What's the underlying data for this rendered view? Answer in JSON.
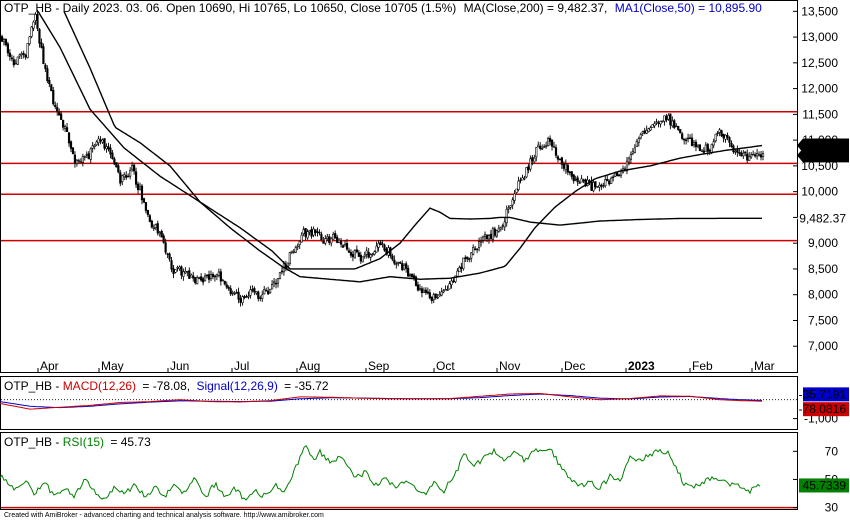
{
  "header": {
    "ticker": "OTP_HB",
    "price_line": "OTP_HB - Daily 2023. 03. 06. Open 10690, Hi 10765, Lo 10650, Close 10705 (1.5%)",
    "ma200_label": "MA(Close,200) = 9,482.37,",
    "ma50_label": "MA1(Close,50) = 10,895.90"
  },
  "macd_header": {
    "prefix": "OTP_HB - ",
    "macd_label": "MACD(12,26)",
    "macd_value": "= -78.08,",
    "signal_label": "Signal(12,26,9)",
    "signal_value": "= -35.72"
  },
  "rsi_header": {
    "prefix": "OTP_HB - ",
    "rsi_label": "RSI(15)",
    "rsi_value": "= 45.73"
  },
  "footer": "Created with AmiBroker - advanced charting and technical analysis software. http://www.amibroker.com",
  "colors": {
    "candles": "#000000",
    "ma": "#000000",
    "support_lines": "#cc0000",
    "macd": "#cc0000",
    "signal": "#0000cc",
    "rsi": "#008000"
  },
  "chart_data": [
    {
      "type": "candlestick",
      "xlabel": "",
      "ylabel": "",
      "ylim": [
        6500,
        13700
      ],
      "yticks": [
        "13,500",
        "13,000",
        "12,500",
        "12,000",
        "11,500",
        "11,000",
        "10,500",
        "10,000",
        "9,500",
        "9,000",
        "8,500",
        "8,000",
        "7,500",
        "7,000"
      ],
      "ytick_values": [
        13500,
        13000,
        12500,
        12000,
        11500,
        11000,
        10500,
        10000,
        9500,
        9000,
        8500,
        8000,
        7500,
        7000
      ],
      "xticks": [
        "Apr",
        "May",
        "Jun",
        "Jul",
        "Aug",
        "Sep",
        "Oct",
        "Nov",
        "Dec",
        "2023",
        "Feb",
        "Mar"
      ],
      "horizontal_lines": [
        11550,
        10550,
        9950,
        9050
      ],
      "last_close_label": "10,705",
      "ma50_label": "10,895.9",
      "ma200_label": "9,482.37",
      "close_anchors": [
        [
          0,
          13000
        ],
        [
          6,
          12500
        ],
        [
          12,
          12700
        ],
        [
          17,
          13400
        ],
        [
          21,
          12500
        ],
        [
          27,
          11600
        ],
        [
          32,
          11200
        ],
        [
          37,
          10600
        ],
        [
          44,
          10700
        ],
        [
          50,
          11000
        ],
        [
          55,
          10750
        ],
        [
          60,
          10200
        ],
        [
          66,
          10450
        ],
        [
          71,
          9900
        ],
        [
          76,
          9400
        ],
        [
          80,
          9200
        ],
        [
          86,
          8500
        ],
        [
          92,
          8450
        ],
        [
          98,
          8250
        ],
        [
          104,
          8300
        ],
        [
          110,
          8400
        ],
        [
          115,
          8100
        ],
        [
          121,
          7900
        ],
        [
          126,
          8050
        ],
        [
          130,
          7950
        ],
        [
          136,
          8100
        ],
        [
          141,
          8400
        ],
        [
          147,
          8800
        ],
        [
          153,
          9200
        ],
        [
          158,
          9200
        ],
        [
          163,
          9050
        ],
        [
          169,
          9100
        ],
        [
          176,
          8850
        ],
        [
          182,
          8700
        ],
        [
          188,
          8850
        ],
        [
          193,
          9000
        ],
        [
          199,
          8650
        ],
        [
          205,
          8500
        ],
        [
          210,
          8200
        ],
        [
          216,
          7950
        ],
        [
          221,
          8000
        ],
        [
          227,
          8150
        ],
        [
          232,
          8550
        ],
        [
          238,
          8800
        ],
        [
          244,
          9050
        ],
        [
          249,
          9200
        ],
        [
          254,
          9400
        ],
        [
          260,
          10000
        ],
        [
          266,
          10400
        ],
        [
          271,
          10800
        ],
        [
          277,
          11000
        ],
        [
          283,
          10650
        ],
        [
          288,
          10350
        ],
        [
          293,
          10200
        ],
        [
          299,
          10100
        ],
        [
          304,
          10100
        ],
        [
          310,
          10250
        ],
        [
          316,
          10500
        ],
        [
          321,
          10900
        ],
        [
          327,
          11200
        ],
        [
          332,
          11400
        ],
        [
          337,
          11450
        ],
        [
          343,
          11200
        ],
        [
          349,
          10950
        ],
        [
          354,
          10800
        ],
        [
          359,
          10850
        ],
        [
          364,
          11150
        ],
        [
          370,
          10900
        ],
        [
          375,
          10700
        ],
        [
          380,
          10650
        ],
        [
          386,
          10705
        ]
      ],
      "ma200_anchors": [
        [
          38,
          13500
        ],
        [
          60,
          12800
        ],
        [
          90,
          11600
        ],
        [
          124,
          10850
        ],
        [
          160,
          10300
        ],
        [
          200,
          9800
        ],
        [
          240,
          9300
        ],
        [
          272,
          8850
        ],
        [
          290,
          8500
        ],
        [
          320,
          8500
        ],
        [
          355,
          8500
        ],
        [
          380,
          8700
        ],
        [
          400,
          9000
        ],
        [
          415,
          9350
        ],
        [
          430,
          9680
        ],
        [
          440,
          9600
        ],
        [
          450,
          9480
        ],
        [
          470,
          9470
        ],
        [
          490,
          9480
        ],
        [
          500,
          9500
        ],
        [
          510,
          9500
        ],
        [
          530,
          9410
        ],
        [
          560,
          9350
        ],
        [
          600,
          9430
        ],
        [
          640,
          9460
        ],
        [
          680,
          9480
        ],
        [
          720,
          9482
        ],
        [
          762,
          9482
        ]
      ],
      "ma50_anchors": [
        [
          64,
          13500
        ],
        [
          90,
          12400
        ],
        [
          115,
          11250
        ],
        [
          140,
          10950
        ],
        [
          170,
          10500
        ],
        [
          200,
          9800
        ],
        [
          230,
          9300
        ],
        [
          260,
          8850
        ],
        [
          282,
          8550
        ],
        [
          300,
          8350
        ],
        [
          330,
          8300
        ],
        [
          360,
          8250
        ],
        [
          390,
          8350
        ],
        [
          420,
          8300
        ],
        [
          450,
          8320
        ],
        [
          480,
          8420
        ],
        [
          505,
          8550
        ],
        [
          520,
          8900
        ],
        [
          535,
          9300
        ],
        [
          555,
          9700
        ],
        [
          575,
          10000
        ],
        [
          595,
          10250
        ],
        [
          620,
          10400
        ],
        [
          650,
          10500
        ],
        [
          680,
          10650
        ],
        [
          700,
          10720
        ],
        [
          725,
          10800
        ],
        [
          745,
          10850
        ],
        [
          762,
          10896
        ]
      ],
      "seed": 4217
    },
    {
      "type": "line",
      "title": "MACD(12,26)",
      "yticks": [
        "-1,000"
      ],
      "ytick_values": [
        -1000
      ],
      "ylim": [
        -1550,
        1200
      ],
      "macd_value_label": "-78.0816",
      "signal_value_label": "-35.7191",
      "macd_anchors": [
        [
          0,
          -200
        ],
        [
          30,
          -500
        ],
        [
          60,
          -400
        ],
        [
          90,
          -300
        ],
        [
          120,
          -150
        ],
        [
          150,
          -100
        ],
        [
          180,
          0
        ],
        [
          210,
          -100
        ],
        [
          240,
          -120
        ],
        [
          270,
          -50
        ],
        [
          300,
          150
        ],
        [
          330,
          130
        ],
        [
          360,
          80
        ],
        [
          390,
          50
        ],
        [
          420,
          50
        ],
        [
          450,
          60
        ],
        [
          480,
          180
        ],
        [
          510,
          300
        ],
        [
          540,
          330
        ],
        [
          570,
          150
        ],
        [
          600,
          0
        ],
        [
          630,
          60
        ],
        [
          660,
          200
        ],
        [
          690,
          180
        ],
        [
          720,
          0
        ],
        [
          740,
          -50
        ],
        [
          762,
          -78
        ]
      ],
      "signal_anchors": [
        [
          0,
          -100
        ],
        [
          30,
          -350
        ],
        [
          60,
          -420
        ],
        [
          90,
          -350
        ],
        [
          120,
          -220
        ],
        [
          150,
          -130
        ],
        [
          180,
          -60
        ],
        [
          210,
          -80
        ],
        [
          240,
          -100
        ],
        [
          270,
          -80
        ],
        [
          300,
          50
        ],
        [
          330,
          100
        ],
        [
          360,
          90
        ],
        [
          390,
          60
        ],
        [
          420,
          50
        ],
        [
          450,
          50
        ],
        [
          480,
          110
        ],
        [
          510,
          220
        ],
        [
          540,
          300
        ],
        [
          570,
          220
        ],
        [
          600,
          80
        ],
        [
          630,
          40
        ],
        [
          660,
          140
        ],
        [
          690,
          170
        ],
        [
          720,
          60
        ],
        [
          740,
          0
        ],
        [
          762,
          -36
        ]
      ]
    },
    {
      "type": "line",
      "title": "RSI(15)",
      "yticks": [
        "70",
        "50",
        "30"
      ],
      "ytick_values": [
        70,
        50,
        30
      ],
      "ylim": [
        29,
        83
      ],
      "value_label": "45.7339",
      "anchors": [
        [
          0,
          53
        ],
        [
          15,
          42
        ],
        [
          25,
          50
        ],
        [
          35,
          40
        ],
        [
          45,
          48
        ],
        [
          55,
          37
        ],
        [
          65,
          45
        ],
        [
          75,
          38
        ],
        [
          85,
          52
        ],
        [
          95,
          40
        ],
        [
          105,
          36
        ],
        [
          115,
          45
        ],
        [
          125,
          40
        ],
        [
          135,
          47
        ],
        [
          145,
          37
        ],
        [
          155,
          45
        ],
        [
          165,
          38
        ],
        [
          175,
          46
        ],
        [
          185,
          40
        ],
        [
          195,
          52
        ],
        [
          205,
          37
        ],
        [
          215,
          47
        ],
        [
          225,
          38
        ],
        [
          235,
          44
        ],
        [
          245,
          35
        ],
        [
          255,
          42
        ],
        [
          265,
          38
        ],
        [
          275,
          46
        ],
        [
          285,
          40
        ],
        [
          295,
          58
        ],
        [
          305,
          73
        ],
        [
          315,
          64
        ],
        [
          320,
          70
        ],
        [
          330,
          62
        ],
        [
          340,
          66
        ],
        [
          348,
          58
        ],
        [
          356,
          52
        ],
        [
          366,
          55
        ],
        [
          376,
          46
        ],
        [
          386,
          50
        ],
        [
          396,
          45
        ],
        [
          406,
          49
        ],
        [
          416,
          44
        ],
        [
          426,
          38
        ],
        [
          434,
          48
        ],
        [
          444,
          42
        ],
        [
          456,
          55
        ],
        [
          464,
          68
        ],
        [
          474,
          60
        ],
        [
          484,
          65
        ],
        [
          494,
          70
        ],
        [
          504,
          63
        ],
        [
          514,
          68
        ],
        [
          524,
          64
        ],
        [
          534,
          70
        ],
        [
          544,
          72
        ],
        [
          552,
          70
        ],
        [
          560,
          60
        ],
        [
          570,
          50
        ],
        [
          580,
          46
        ],
        [
          590,
          48
        ],
        [
          600,
          44
        ],
        [
          610,
          52
        ],
        [
          620,
          48
        ],
        [
          630,
          67
        ],
        [
          640,
          63
        ],
        [
          650,
          68
        ],
        [
          660,
          70
        ],
        [
          668,
          70
        ],
        [
          676,
          58
        ],
        [
          684,
          47
        ],
        [
          694,
          44
        ],
        [
          702,
          48
        ],
        [
          712,
          52
        ],
        [
          722,
          49
        ],
        [
          732,
          46
        ],
        [
          742,
          45
        ],
        [
          750,
          42
        ],
        [
          760,
          46
        ]
      ],
      "seed": 911
    }
  ]
}
